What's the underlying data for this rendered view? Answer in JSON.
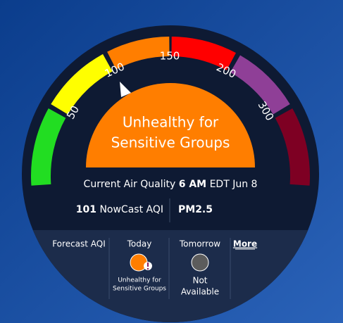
{
  "gauge": {
    "ticks": [
      "50",
      "100",
      "150",
      "200",
      "300"
    ],
    "category": [
      "Unhealthy for",
      "Sensitive Groups"
    ]
  },
  "current": {
    "label": "Current Air Quality",
    "time": "6 AM",
    "date": "EDT Jun 8",
    "value": "101",
    "value_label": "NowCast AQI",
    "pollutant": "PM2.5"
  },
  "forecast": {
    "label": "Forecast AQI",
    "today": {
      "label": "Today",
      "status": [
        "Unhealthy for",
        "Sensitive Groups"
      ]
    },
    "tomorrow": {
      "label": "Tomorrow",
      "status": [
        "Not",
        "Available"
      ]
    },
    "more": "More"
  }
}
